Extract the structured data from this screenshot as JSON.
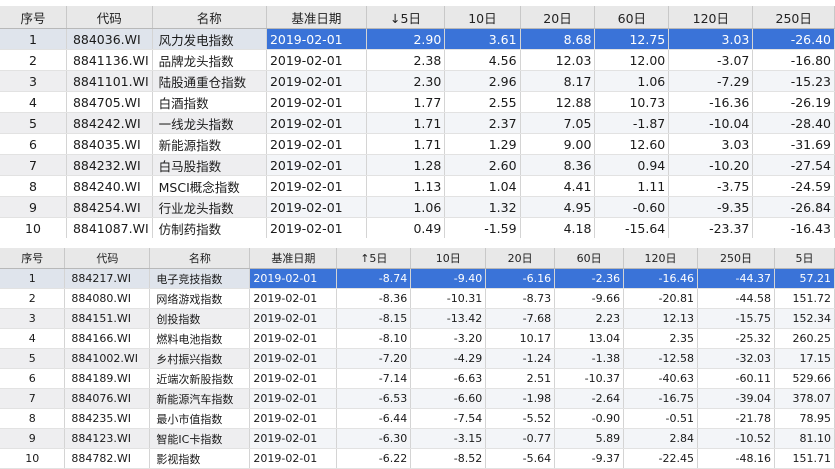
{
  "table1": {
    "headers": [
      "序号",
      "代码",
      "名称",
      "基准日期",
      "↓5日",
      "10日",
      "20日",
      "60日",
      "120日",
      "250日"
    ],
    "rows": [
      [
        "1",
        "884036.WI",
        "风力发电指数",
        "2019-02-01",
        "2.90",
        "3.61",
        "8.68",
        "12.75",
        "3.03",
        "-26.40"
      ],
      [
        "2",
        "8841136.WI",
        "品牌龙头指数",
        "2019-02-01",
        "2.38",
        "4.56",
        "12.03",
        "12.00",
        "-3.07",
        "-16.80"
      ],
      [
        "3",
        "8841101.WI",
        "陆股通重仓指数",
        "2019-02-01",
        "2.30",
        "2.96",
        "8.17",
        "1.06",
        "-7.29",
        "-15.23"
      ],
      [
        "4",
        "884705.WI",
        "白酒指数",
        "2019-02-01",
        "1.77",
        "2.55",
        "12.88",
        "10.73",
        "-16.36",
        "-26.19"
      ],
      [
        "5",
        "884242.WI",
        "一线龙头指数",
        "2019-02-01",
        "1.71",
        "2.37",
        "7.05",
        "-1.87",
        "-10.04",
        "-28.40"
      ],
      [
        "6",
        "884035.WI",
        "新能源指数",
        "2019-02-01",
        "1.71",
        "1.29",
        "9.00",
        "12.60",
        "3.03",
        "-31.69"
      ],
      [
        "7",
        "884232.WI",
        "白马股指数",
        "2019-02-01",
        "1.28",
        "2.60",
        "8.36",
        "0.94",
        "-10.20",
        "-27.54"
      ],
      [
        "8",
        "884240.WI",
        "MSCI概念指数",
        "2019-02-01",
        "1.13",
        "1.04",
        "4.41",
        "1.11",
        "-3.75",
        "-24.59"
      ],
      [
        "9",
        "884254.WI",
        "行业龙头指数",
        "2019-02-01",
        "1.06",
        "1.32",
        "4.95",
        "-0.60",
        "-9.35",
        "-26.84"
      ],
      [
        "10",
        "8841087.WI",
        "仿制药指数",
        "2019-02-01",
        "0.49",
        "-1.59",
        "4.18",
        "-15.64",
        "-23.37",
        "-16.43"
      ]
    ]
  },
  "table2": {
    "headers": [
      "序号",
      "代码",
      "名称",
      "基准日期",
      "↑5日",
      "10日",
      "20日",
      "60日",
      "120日",
      "250日",
      "5日"
    ],
    "rows": [
      [
        "1",
        "884217.WI",
        "电子竞技指数",
        "2019-02-01",
        "-8.74",
        "-9.40",
        "-6.16",
        "-2.36",
        "-16.46",
        "-44.37",
        "57.21"
      ],
      [
        "2",
        "884080.WI",
        "网络游戏指数",
        "2019-02-01",
        "-8.36",
        "-10.31",
        "-8.73",
        "-9.66",
        "-20.81",
        "-44.58",
        "151.72"
      ],
      [
        "3",
        "884151.WI",
        "创投指数",
        "2019-02-01",
        "-8.15",
        "-13.42",
        "-7.68",
        "2.23",
        "12.13",
        "-15.75",
        "152.34"
      ],
      [
        "4",
        "884166.WI",
        "燃料电池指数",
        "2019-02-01",
        "-8.10",
        "-3.20",
        "10.17",
        "13.04",
        "2.35",
        "-25.32",
        "260.25"
      ],
      [
        "5",
        "8841002.WI",
        "乡村振兴指数",
        "2019-02-01",
        "-7.20",
        "-4.29",
        "-1.24",
        "-1.38",
        "-12.58",
        "-32.03",
        "17.15"
      ],
      [
        "6",
        "884189.WI",
        "近端次新股指数",
        "2019-02-01",
        "-7.14",
        "-6.63",
        "2.51",
        "-10.37",
        "-40.63",
        "-60.11",
        "529.66"
      ],
      [
        "7",
        "884076.WI",
        "新能源汽车指数",
        "2019-02-01",
        "-6.53",
        "-6.60",
        "-1.98",
        "-2.64",
        "-16.75",
        "-39.04",
        "378.07"
      ],
      [
        "8",
        "884235.WI",
        "最小市值指数",
        "2019-02-01",
        "-6.44",
        "-7.54",
        "-5.52",
        "-0.90",
        "-0.51",
        "-21.78",
        "78.95"
      ],
      [
        "9",
        "884123.WI",
        "智能IC卡指数",
        "2019-02-01",
        "-6.30",
        "-3.15",
        "-0.77",
        "5.89",
        "2.84",
        "-10.52",
        "81.10"
      ],
      [
        "10",
        "884782.WI",
        "影视指数",
        "2019-02-01",
        "-6.22",
        "-8.52",
        "-5.64",
        "-9.37",
        "-22.45",
        "-48.16",
        "151.71"
      ]
    ]
  },
  "colors": {
    "selected_row": "#3a73d8",
    "header_bg": "#e8e8e8",
    "alt_row": "#f3f5f8"
  }
}
